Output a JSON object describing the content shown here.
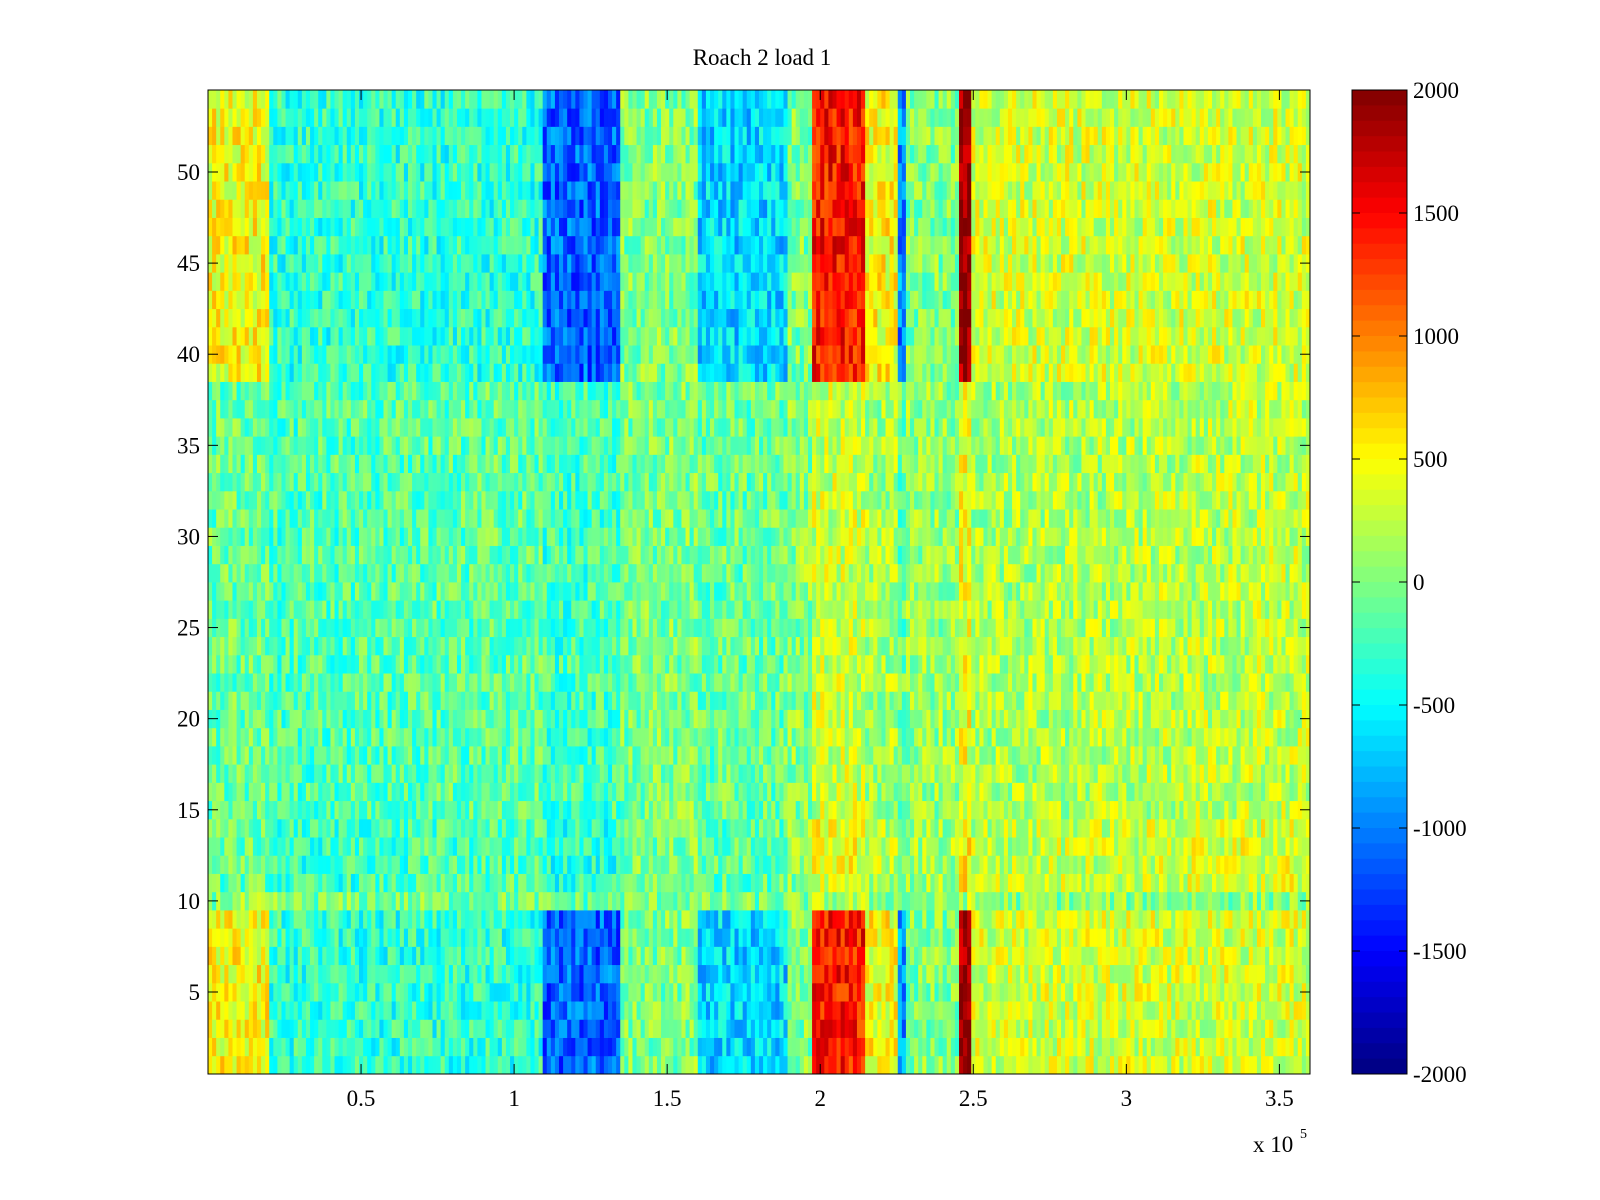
{
  "chart_data": {
    "type": "heatmap",
    "title": "Roach 2 load 1",
    "xlabel": "",
    "ylabel": "",
    "x_multiplier": {
      "base": "x 10",
      "exponent": "5"
    },
    "xlim": [
      0,
      360000
    ],
    "ylim": [
      0.5,
      54.5
    ],
    "x_ticks": [
      {
        "value": 50000,
        "label": "0.5"
      },
      {
        "value": 100000,
        "label": "1"
      },
      {
        "value": 150000,
        "label": "1.5"
      },
      {
        "value": 200000,
        "label": "2"
      },
      {
        "value": 250000,
        "label": "2.5"
      },
      {
        "value": 300000,
        "label": "3"
      },
      {
        "value": 350000,
        "label": "3.5"
      }
    ],
    "y_ticks": [
      {
        "value": 5,
        "label": "5"
      },
      {
        "value": 10,
        "label": "10"
      },
      {
        "value": 15,
        "label": "15"
      },
      {
        "value": 20,
        "label": "20"
      },
      {
        "value": 25,
        "label": "25"
      },
      {
        "value": 30,
        "label": "30"
      },
      {
        "value": 35,
        "label": "35"
      },
      {
        "value": 40,
        "label": "40"
      },
      {
        "value": 45,
        "label": "45"
      },
      {
        "value": 50,
        "label": "50"
      }
    ],
    "colorbar": {
      "colormap": "jet",
      "clim": [
        -2000,
        2000
      ],
      "ticks": [
        {
          "value": 2000,
          "label": "2000"
        },
        {
          "value": 1500,
          "label": "1500"
        },
        {
          "value": 1000,
          "label": "1000"
        },
        {
          "value": 500,
          "label": "500"
        },
        {
          "value": 0,
          "label": "0"
        },
        {
          "value": -500,
          "label": "-500"
        },
        {
          "value": -1000,
          "label": "-1000"
        },
        {
          "value": -1500,
          "label": "-1500"
        },
        {
          "value": -2000,
          "label": "-2000"
        }
      ]
    },
    "grid": false,
    "rows": 54,
    "row_range": [
      1,
      54
    ],
    "approx_column_profile": [
      {
        "x_range": [
          0,
          20000
        ],
        "value": 300
      },
      {
        "x_range": [
          20000,
          110000
        ],
        "value": -200
      },
      {
        "x_range": [
          110000,
          135000
        ],
        "value": -700
      },
      {
        "x_range": [
          135000,
          160000
        ],
        "value": 0
      },
      {
        "x_range": [
          160000,
          190000
        ],
        "value": -400
      },
      {
        "x_range": [
          198000,
          215000
        ],
        "value": 900
      },
      {
        "x_range": [
          215000,
          225000
        ],
        "value": 300
      },
      {
        "x_range": [
          223000,
          228000
        ],
        "value": -600
      },
      {
        "x_range": [
          245000,
          250000
        ],
        "value": 1200
      },
      {
        "x_range": [
          250000,
          360000
        ],
        "value": 200
      }
    ],
    "approx_row_bands": [
      {
        "rows": [
          1,
          9
        ],
        "pattern": "strong"
      },
      {
        "rows": [
          10,
          10
        ],
        "pattern": "neutral"
      },
      {
        "rows": [
          11,
          14
        ],
        "pattern": "cool-left, warm-right"
      },
      {
        "rows": [
          15,
          38
        ],
        "pattern": "weak"
      },
      {
        "rows": [
          39,
          54
        ],
        "pattern": "strong"
      }
    ]
  }
}
